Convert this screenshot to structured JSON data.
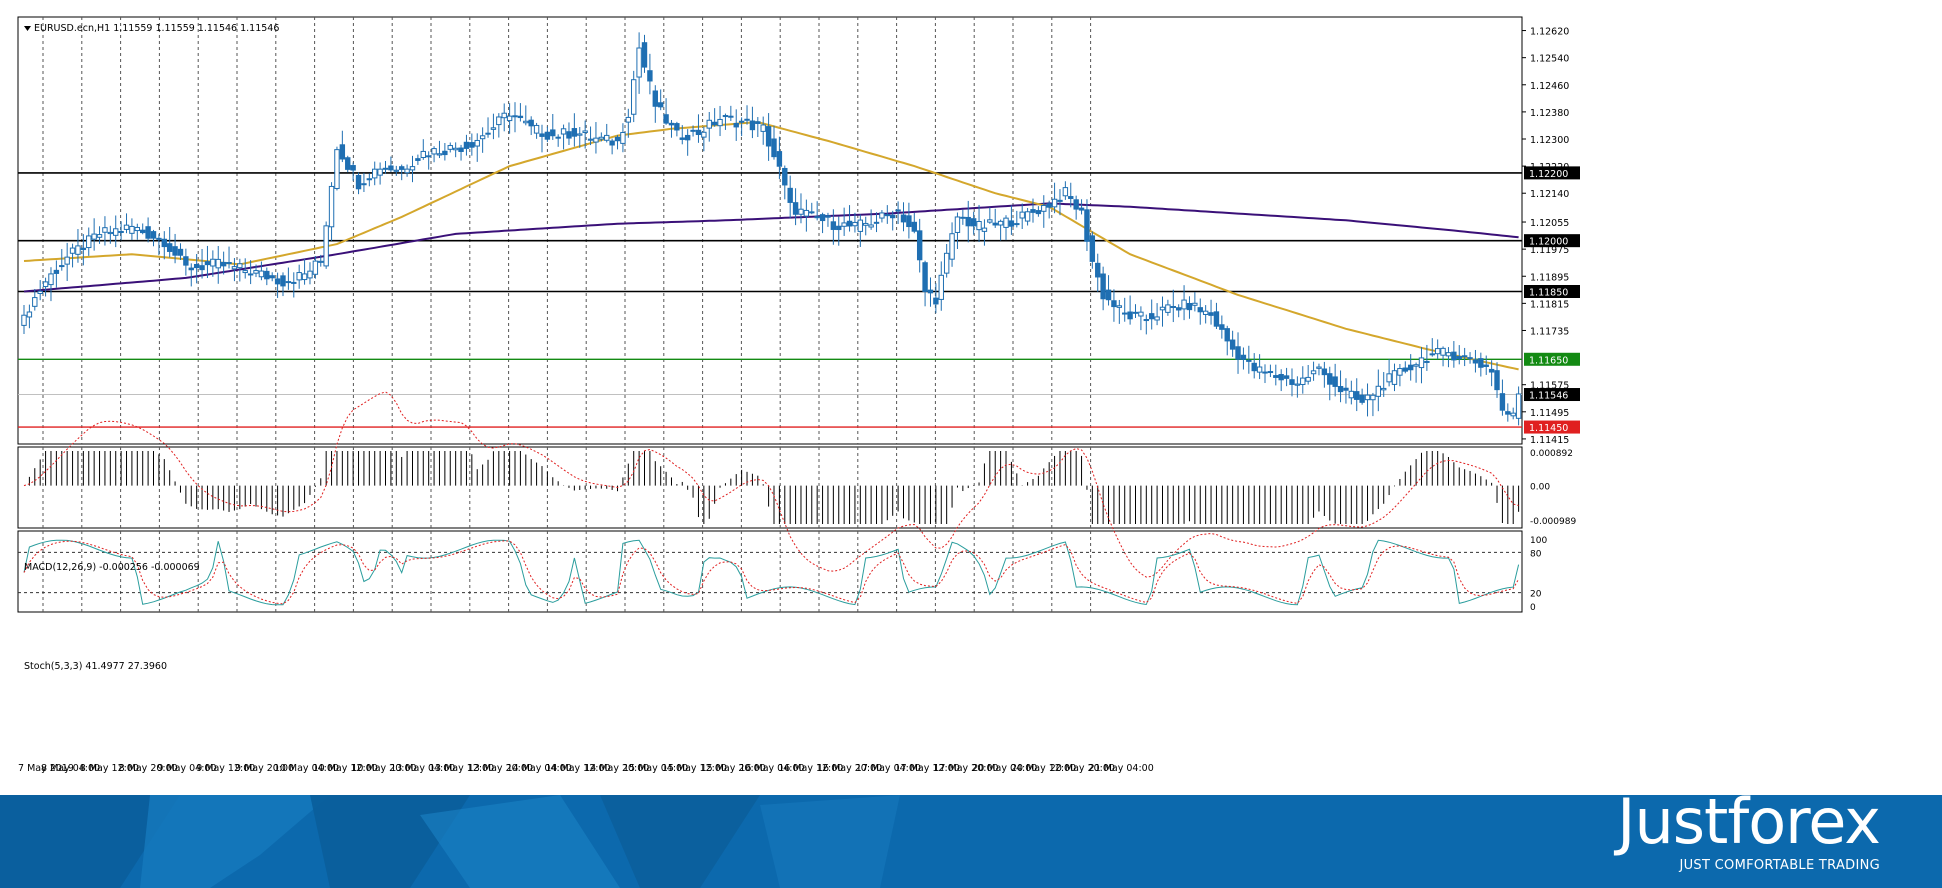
{
  "main_panel": {
    "header": "EURUSD.ecn,H1  1.11559 1.11559 1.11546 1.11546",
    "price_ticks": [
      "1.12620",
      "1.12540",
      "1.12460",
      "1.12380",
      "1.12300",
      "1.12220",
      "1.12140",
      "1.12055",
      "1.11975",
      "1.11895",
      "1.11815",
      "1.11735",
      "1.11575",
      "1.11495",
      "1.11415"
    ]
  },
  "macd_panel": {
    "header": "MACD(12,26,9) -0.000256 -0.000069",
    "ticks": [
      "0.000892",
      "0.00",
      "-0.000989"
    ]
  },
  "stoch_panel": {
    "header": "Stoch(5,3,3) 41.4977 27.3960",
    "ticks": [
      "100",
      "80",
      "20",
      "0"
    ]
  },
  "time_axis": [
    "7 May 2019",
    "8 May 04:00",
    "8 May 12:00",
    "8 May 20:00",
    "9 May 04:00",
    "9 May 12:00",
    "9 May 20:00",
    "10 May 04:00",
    "10 May 12:00",
    "10 May 20:00",
    "13 May 04:00",
    "13 May 12:00",
    "13 May 20:00",
    "14 May 04:00",
    "14 May 12:00",
    "14 May 20:00",
    "15 May 04:00",
    "15 May 12:00",
    "15 May 20:00",
    "16 May 04:00",
    "16 May 12:00",
    "16 May 20:00",
    "17 May 04:00",
    "17 May 12:00",
    "17 May 20:00",
    "20 May 04:00",
    "20 May 12:00",
    "20 May 20:00",
    "21 May 04:00"
  ],
  "chart_data": {
    "type": "candlestick",
    "symbol": "EURUSD.ecn",
    "timeframe": "H1",
    "ylim": [
      1.114,
      1.1266
    ],
    "levels": [
      {
        "price": 1.122,
        "label": "1.12200",
        "color": "#000000"
      },
      {
        "price": 1.12,
        "label": "1.12000",
        "color": "#000000"
      },
      {
        "price": 1.1185,
        "label": "1.11850",
        "color": "#000000"
      },
      {
        "price": 1.1165,
        "label": "1.11650",
        "color": "#138a13"
      },
      {
        "price": 1.1145,
        "label": "1.11450",
        "color": "#e02020"
      }
    ],
    "current_price": {
      "price": 1.11546,
      "label": "1.11546"
    },
    "close_path_anchors": [
      [
        0,
        1.1178
      ],
      [
        4,
        1.1188
      ],
      [
        8,
        1.1195
      ],
      [
        14,
        1.1202
      ],
      [
        20,
        1.1204
      ],
      [
        26,
        1.12
      ],
      [
        30,
        1.1192
      ],
      [
        36,
        1.1193
      ],
      [
        42,
        1.1191
      ],
      [
        48,
        1.1188
      ],
      [
        52,
        1.119
      ],
      [
        55,
        1.1194
      ],
      [
        58,
        1.1228
      ],
      [
        62,
        1.1217
      ],
      [
        66,
        1.1222
      ],
      [
        70,
        1.1221
      ],
      [
        74,
        1.1226
      ],
      [
        78,
        1.1227
      ],
      [
        82,
        1.1228
      ],
      [
        86,
        1.1232
      ],
      [
        90,
        1.1238
      ],
      [
        94,
        1.1233
      ],
      [
        98,
        1.1231
      ],
      [
        102,
        1.1232
      ],
      [
        106,
        1.123
      ],
      [
        110,
        1.1229
      ],
      [
        112,
        1.1238
      ],
      [
        114,
        1.1257
      ],
      [
        117,
        1.124
      ],
      [
        121,
        1.1231
      ],
      [
        125,
        1.1232
      ],
      [
        129,
        1.1236
      ],
      [
        133,
        1.1235
      ],
      [
        137,
        1.1233
      ],
      [
        140,
        1.1221
      ],
      [
        142,
        1.121
      ],
      [
        146,
        1.1207
      ],
      [
        150,
        1.1205
      ],
      [
        154,
        1.1204
      ],
      [
        158,
        1.1206
      ],
      [
        162,
        1.1209
      ],
      [
        165,
        1.1202
      ],
      [
        167,
        1.1185
      ],
      [
        169,
        1.1183
      ],
      [
        171,
        1.1195
      ],
      [
        173,
        1.1207
      ],
      [
        177,
        1.1204
      ],
      [
        181,
        1.1205
      ],
      [
        185,
        1.1207
      ],
      [
        189,
        1.121
      ],
      [
        193,
        1.1214
      ],
      [
        196,
        1.1208
      ],
      [
        198,
        1.1194
      ],
      [
        200,
        1.1184
      ],
      [
        204,
        1.1178
      ],
      [
        208,
        1.1177
      ],
      [
        212,
        1.118
      ],
      [
        216,
        1.1181
      ],
      [
        220,
        1.1178
      ],
      [
        224,
        1.1168
      ],
      [
        228,
        1.1162
      ],
      [
        232,
        1.116
      ],
      [
        236,
        1.1158
      ],
      [
        240,
        1.1162
      ],
      [
        244,
        1.1156
      ],
      [
        248,
        1.1152
      ],
      [
        252,
        1.1158
      ],
      [
        256,
        1.1162
      ],
      [
        260,
        1.1166
      ],
      [
        264,
        1.1167
      ],
      [
        268,
        1.1165
      ],
      [
        272,
        1.1162
      ],
      [
        274,
        1.115
      ],
      [
        276,
        1.1148
      ],
      [
        277,
        1.1155
      ]
    ],
    "indicators": {
      "ma_fast": {
        "color": "#d4a72c",
        "anchors": [
          [
            0,
            1.1194
          ],
          [
            20,
            1.1196
          ],
          [
            40,
            1.1193
          ],
          [
            58,
            1.1199
          ],
          [
            70,
            1.1207
          ],
          [
            90,
            1.1222
          ],
          [
            110,
            1.1231
          ],
          [
            120,
            1.1233
          ],
          [
            136,
            1.1235
          ],
          [
            150,
            1.1229
          ],
          [
            165,
            1.1222
          ],
          [
            180,
            1.1214
          ],
          [
            190,
            1.121
          ],
          [
            205,
            1.1196
          ],
          [
            225,
            1.1184
          ],
          [
            245,
            1.1174
          ],
          [
            260,
            1.1168
          ],
          [
            277,
            1.1162
          ]
        ]
      },
      "ma_slow": {
        "color": "#3a1078",
        "anchors": [
          [
            0,
            1.1185
          ],
          [
            30,
            1.1189
          ],
          [
            58,
            1.1196
          ],
          [
            80,
            1.1202
          ],
          [
            110,
            1.1205
          ],
          [
            130,
            1.1206
          ],
          [
            160,
            1.1208
          ],
          [
            180,
            1.121
          ],
          [
            190,
            1.1211
          ],
          [
            205,
            1.121
          ],
          [
            225,
            1.1208
          ],
          [
            245,
            1.1206
          ],
          [
            265,
            1.1203
          ],
          [
            277,
            1.1201
          ]
        ]
      },
      "macd": {
        "range": [
          -0.000989,
          0.000892
        ],
        "line_color": "#000000",
        "signal_color": "#e02020"
      },
      "stochastic": {
        "range": [
          0,
          100
        ],
        "levels": [
          20,
          80
        ],
        "k_color": "#2a9d9d",
        "d_color": "#e02020"
      }
    }
  },
  "footer": {
    "brand": "Justforex",
    "tagline": "JUST COMFORTABLE TRADING"
  }
}
